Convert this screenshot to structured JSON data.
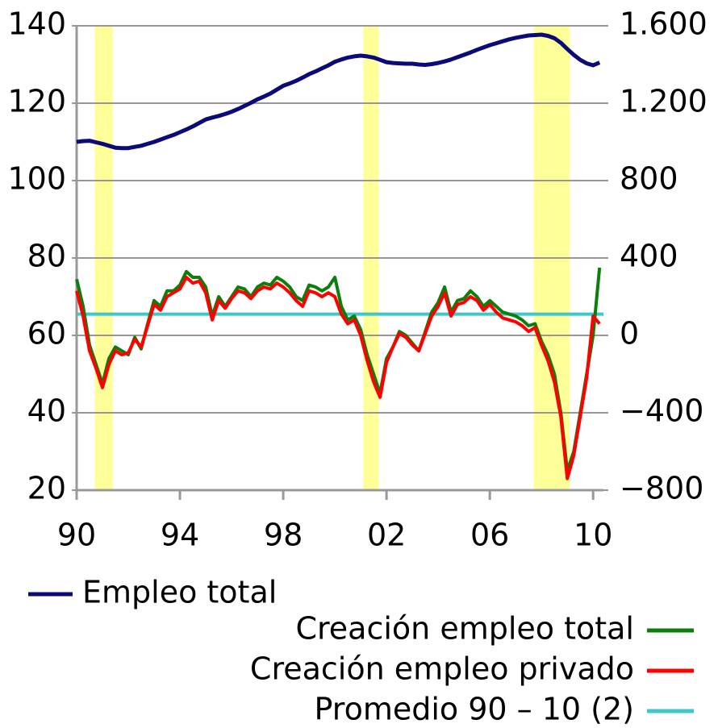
{
  "chart_data": {
    "type": "line",
    "x": [
      1990,
      1990.25,
      1990.5,
      1990.75,
      1991,
      1991.25,
      1991.5,
      1991.75,
      1992,
      1992.25,
      1992.5,
      1992.75,
      1993,
      1993.25,
      1993.5,
      1993.75,
      1994,
      1994.25,
      1994.5,
      1994.75,
      1995,
      1995.25,
      1995.5,
      1995.75,
      1996,
      1996.25,
      1996.5,
      1996.75,
      1997,
      1997.25,
      1997.5,
      1997.75,
      1998,
      1998.25,
      1998.5,
      1998.75,
      1999,
      1999.25,
      1999.5,
      1999.75,
      2000,
      2000.25,
      2000.5,
      2000.75,
      2001,
      2001.25,
      2001.5,
      2001.75,
      2002,
      2002.25,
      2002.5,
      2002.75,
      2003,
      2003.25,
      2003.5,
      2003.75,
      2004,
      2004.25,
      2004.5,
      2004.75,
      2005,
      2005.25,
      2005.5,
      2005.75,
      2006,
      2006.25,
      2006.5,
      2006.75,
      2007,
      2007.25,
      2007.5,
      2007.75,
      2008,
      2008.25,
      2008.5,
      2008.75,
      2009,
      2009.25,
      2009.5,
      2009.75,
      2010,
      2010.25
    ],
    "series": [
      {
        "name": "Empleo total",
        "color": "#0a0a78",
        "axis": "y",
        "values": [
          110,
          110.2,
          110.3,
          109.9,
          109.5,
          109,
          108.5,
          108.4,
          108.4,
          108.7,
          109,
          109.5,
          110,
          110.6,
          111.2,
          111.8,
          112.5,
          113.2,
          114,
          114.9,
          115.8,
          116.3,
          116.7,
          117.2,
          117.8,
          118.5,
          119.3,
          120.1,
          121,
          121.7,
          122.5,
          123.5,
          124.5,
          125.1,
          125.8,
          126.6,
          127.5,
          128.2,
          129,
          129.8,
          130.7,
          131.3,
          131.8,
          132.1,
          132.3,
          132.1,
          131.8,
          131.2,
          130.6,
          130.4,
          130.3,
          130.2,
          130.2,
          130,
          129.9,
          130.1,
          130.4,
          130.8,
          131.3,
          131.9,
          132.5,
          133.1,
          133.8,
          134.4,
          135,
          135.5,
          136,
          136.5,
          136.9,
          137.2,
          137.5,
          137.6,
          137.7,
          137.4,
          136.8,
          135.6,
          134,
          132.5,
          131.2,
          130.3,
          129.8,
          130.5
        ]
      },
      {
        "name": "Creación empleo total",
        "color": "#0a7f0a",
        "axis": "y2",
        "values": [
          290,
          150,
          -50,
          -150,
          -250,
          -120,
          -60,
          -80,
          -100,
          -10,
          -70,
          60,
          180,
          150,
          230,
          230,
          260,
          330,
          300,
          300,
          250,
          100,
          200,
          150,
          200,
          250,
          240,
          200,
          250,
          270,
          260,
          300,
          280,
          250,
          200,
          180,
          260,
          250,
          230,
          250,
          300,
          150,
          80,
          100,
          30,
          -100,
          -200,
          -300,
          -120,
          -60,
          20,
          0,
          -40,
          -80,
          20,
          120,
          170,
          250,
          120,
          180,
          190,
          230,
          200,
          150,
          180,
          150,
          120,
          110,
          100,
          80,
          50,
          60,
          -30,
          -100,
          -200,
          -400,
          -700,
          -600,
          -400,
          -200,
          0,
          350
        ]
      },
      {
        "name": "Creación empleo privado",
        "color": "#ff0000",
        "axis": "y2",
        "values": [
          230,
          100,
          -80,
          -170,
          -270,
          -150,
          -80,
          -100,
          -90,
          -20,
          -60,
          50,
          160,
          130,
          200,
          220,
          240,
          300,
          270,
          280,
          220,
          80,
          180,
          140,
          190,
          230,
          220,
          190,
          230,
          250,
          240,
          270,
          250,
          220,
          180,
          150,
          230,
          220,
          200,
          220,
          200,
          110,
          60,
          80,
          0,
          -130,
          -240,
          -320,
          -140,
          -60,
          10,
          -10,
          -50,
          -80,
          10,
          100,
          150,
          220,
          100,
          160,
          170,
          200,
          180,
          130,
          160,
          120,
          90,
          80,
          70,
          50,
          20,
          40,
          -50,
          -130,
          -240,
          -420,
          -740,
          -620,
          -420,
          -220,
          100,
          60
        ]
      }
    ],
    "average": {
      "name": "Promedio 90 – 10 (2)",
      "color": "#3ec8c8",
      "axis": "y2",
      "value": 110
    },
    "recessions": [
      [
        1990.7,
        1991.4
      ],
      [
        2001.1,
        2001.7
      ],
      [
        2007.7,
        2009.1
      ]
    ],
    "recession_color": "#ffff99",
    "xlim": [
      1990,
      2010.4
    ],
    "xticks": [
      {
        "value": 1990,
        "label": "90"
      },
      {
        "value": 1994,
        "label": "94"
      },
      {
        "value": 1998,
        "label": "98"
      },
      {
        "value": 2002,
        "label": "02"
      },
      {
        "value": 2006,
        "label": "06"
      },
      {
        "value": 2010,
        "label": "10"
      }
    ],
    "ylim": [
      20,
      140
    ],
    "yticks": [
      20,
      40,
      60,
      80,
      100,
      120,
      140
    ],
    "y2lim": [
      -800,
      1600
    ],
    "y2ticks": [
      {
        "value": -800,
        "label": "−800"
      },
      {
        "value": -400,
        "label": "−400"
      },
      0,
      400,
      800,
      {
        "value": 1200,
        "label": "1.200"
      },
      {
        "value": 1600,
        "label": "1.600"
      }
    ],
    "grid": true
  }
}
